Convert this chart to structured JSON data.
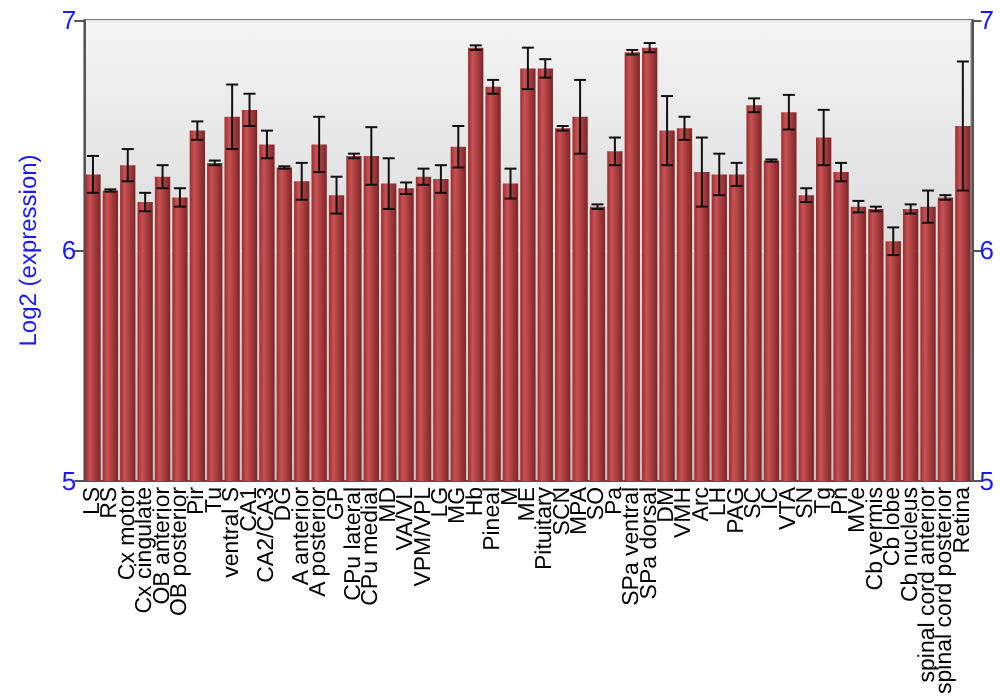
{
  "chart_data": {
    "type": "bar",
    "ylabel": "Log2 (expression)",
    "categories": [
      "LS",
      "RS",
      "Cx motor",
      "Cx cingulate",
      "OB anterior",
      "OB posterior",
      "Pir",
      "Tu",
      "ventral S",
      "CA1",
      "CA2/CA3",
      "DG",
      "A anterior",
      "A posterior",
      "GP",
      "CPu lateral",
      "CPu medial",
      "MD",
      "VA/VL",
      "VPM/VPL",
      "LG",
      "MG",
      "Hb",
      "Pineal",
      "M",
      "ME",
      "Pituitary",
      "SCN",
      "MPA",
      "SO",
      "Pa",
      "SPa ventral",
      "SPa dorsal",
      "DM",
      "VMH",
      "Arc",
      "LH",
      "PAG",
      "SC",
      "IC",
      "VTA",
      "SN",
      "Tg",
      "Pn",
      "MVe",
      "Cb vermis",
      "Cb lobe",
      "Cb nucleus",
      "spinal cord anterior",
      "spinal cord posterior",
      "Retina"
    ],
    "series": [
      {
        "color": "#c0393b",
        "values": [
          6.33,
          6.26,
          6.37,
          6.21,
          6.32,
          6.23,
          6.52,
          6.38,
          6.58,
          6.61,
          6.46,
          6.36,
          6.3,
          6.46,
          6.24,
          6.41,
          6.41,
          6.29,
          6.27,
          6.32,
          6.31,
          6.45,
          6.88,
          6.71,
          6.29,
          6.79,
          6.79,
          6.53,
          6.58,
          6.19,
          6.43,
          6.86,
          6.88,
          6.52,
          6.53,
          6.34,
          6.33,
          6.33,
          6.63,
          6.39,
          6.6,
          6.24,
          6.49,
          6.34,
          6.19,
          6.18,
          6.04,
          6.18,
          6.19,
          6.23,
          6.54
        ],
        "errors": [
          0.08,
          0.005,
          0.07,
          0.04,
          0.05,
          0.04,
          0.04,
          0.01,
          0.14,
          0.07,
          0.06,
          0.005,
          0.08,
          0.12,
          0.08,
          0.01,
          0.125,
          0.11,
          0.025,
          0.035,
          0.06,
          0.09,
          0.01,
          0.03,
          0.065,
          0.09,
          0.04,
          0.01,
          0.16,
          0.01,
          0.06,
          0.01,
          0.02,
          0.15,
          0.05,
          0.15,
          0.09,
          0.05,
          0.03,
          0.005,
          0.075,
          0.03,
          0.12,
          0.04,
          0.025,
          0.01,
          0.06,
          0.02,
          0.07,
          0.01,
          0.28
        ]
      }
    ],
    "ylim": [
      5,
      7
    ],
    "yticks": [
      5,
      6,
      7
    ],
    "y2lim": [
      5,
      7
    ],
    "y2ticks": [
      5,
      6,
      7
    ],
    "grid": "y"
  }
}
